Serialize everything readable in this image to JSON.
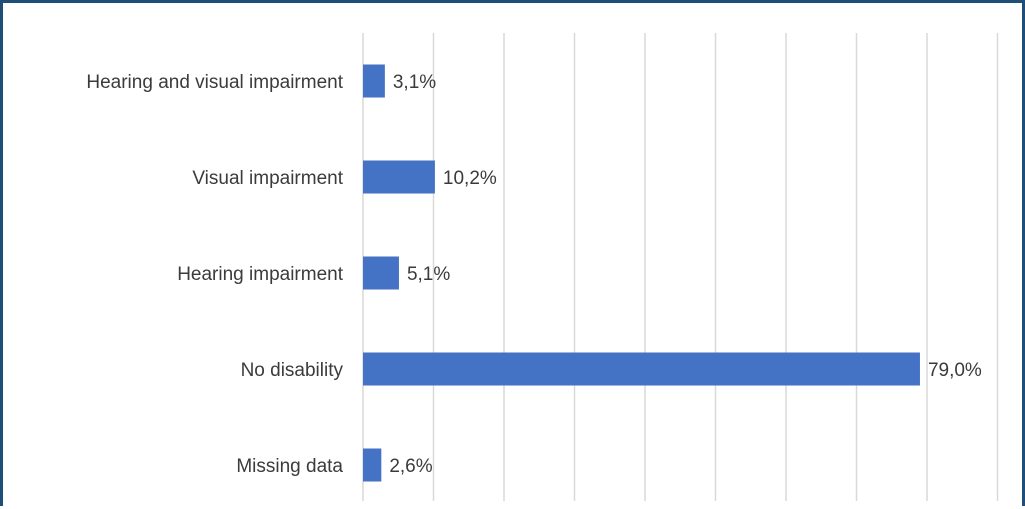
{
  "chart_data": {
    "type": "bar",
    "orientation": "horizontal",
    "categories": [
      "Hearing and visual impairment",
      "Visual impairment",
      "Hearing impairment",
      "No disability",
      "Missing data"
    ],
    "values": [
      3.1,
      10.2,
      5.1,
      79.0,
      2.6
    ],
    "value_labels": [
      "3,1%",
      "10,2%",
      "5,1%",
      "79,0%",
      "2,6%"
    ],
    "title": "",
    "xlabel": "",
    "ylabel": "",
    "xlim": [
      0,
      90
    ],
    "grid": "vertical",
    "legend": "none",
    "bar_color": "#4472c4",
    "grid_color": "#d9d9d9",
    "border_color": "#1f4e79"
  }
}
